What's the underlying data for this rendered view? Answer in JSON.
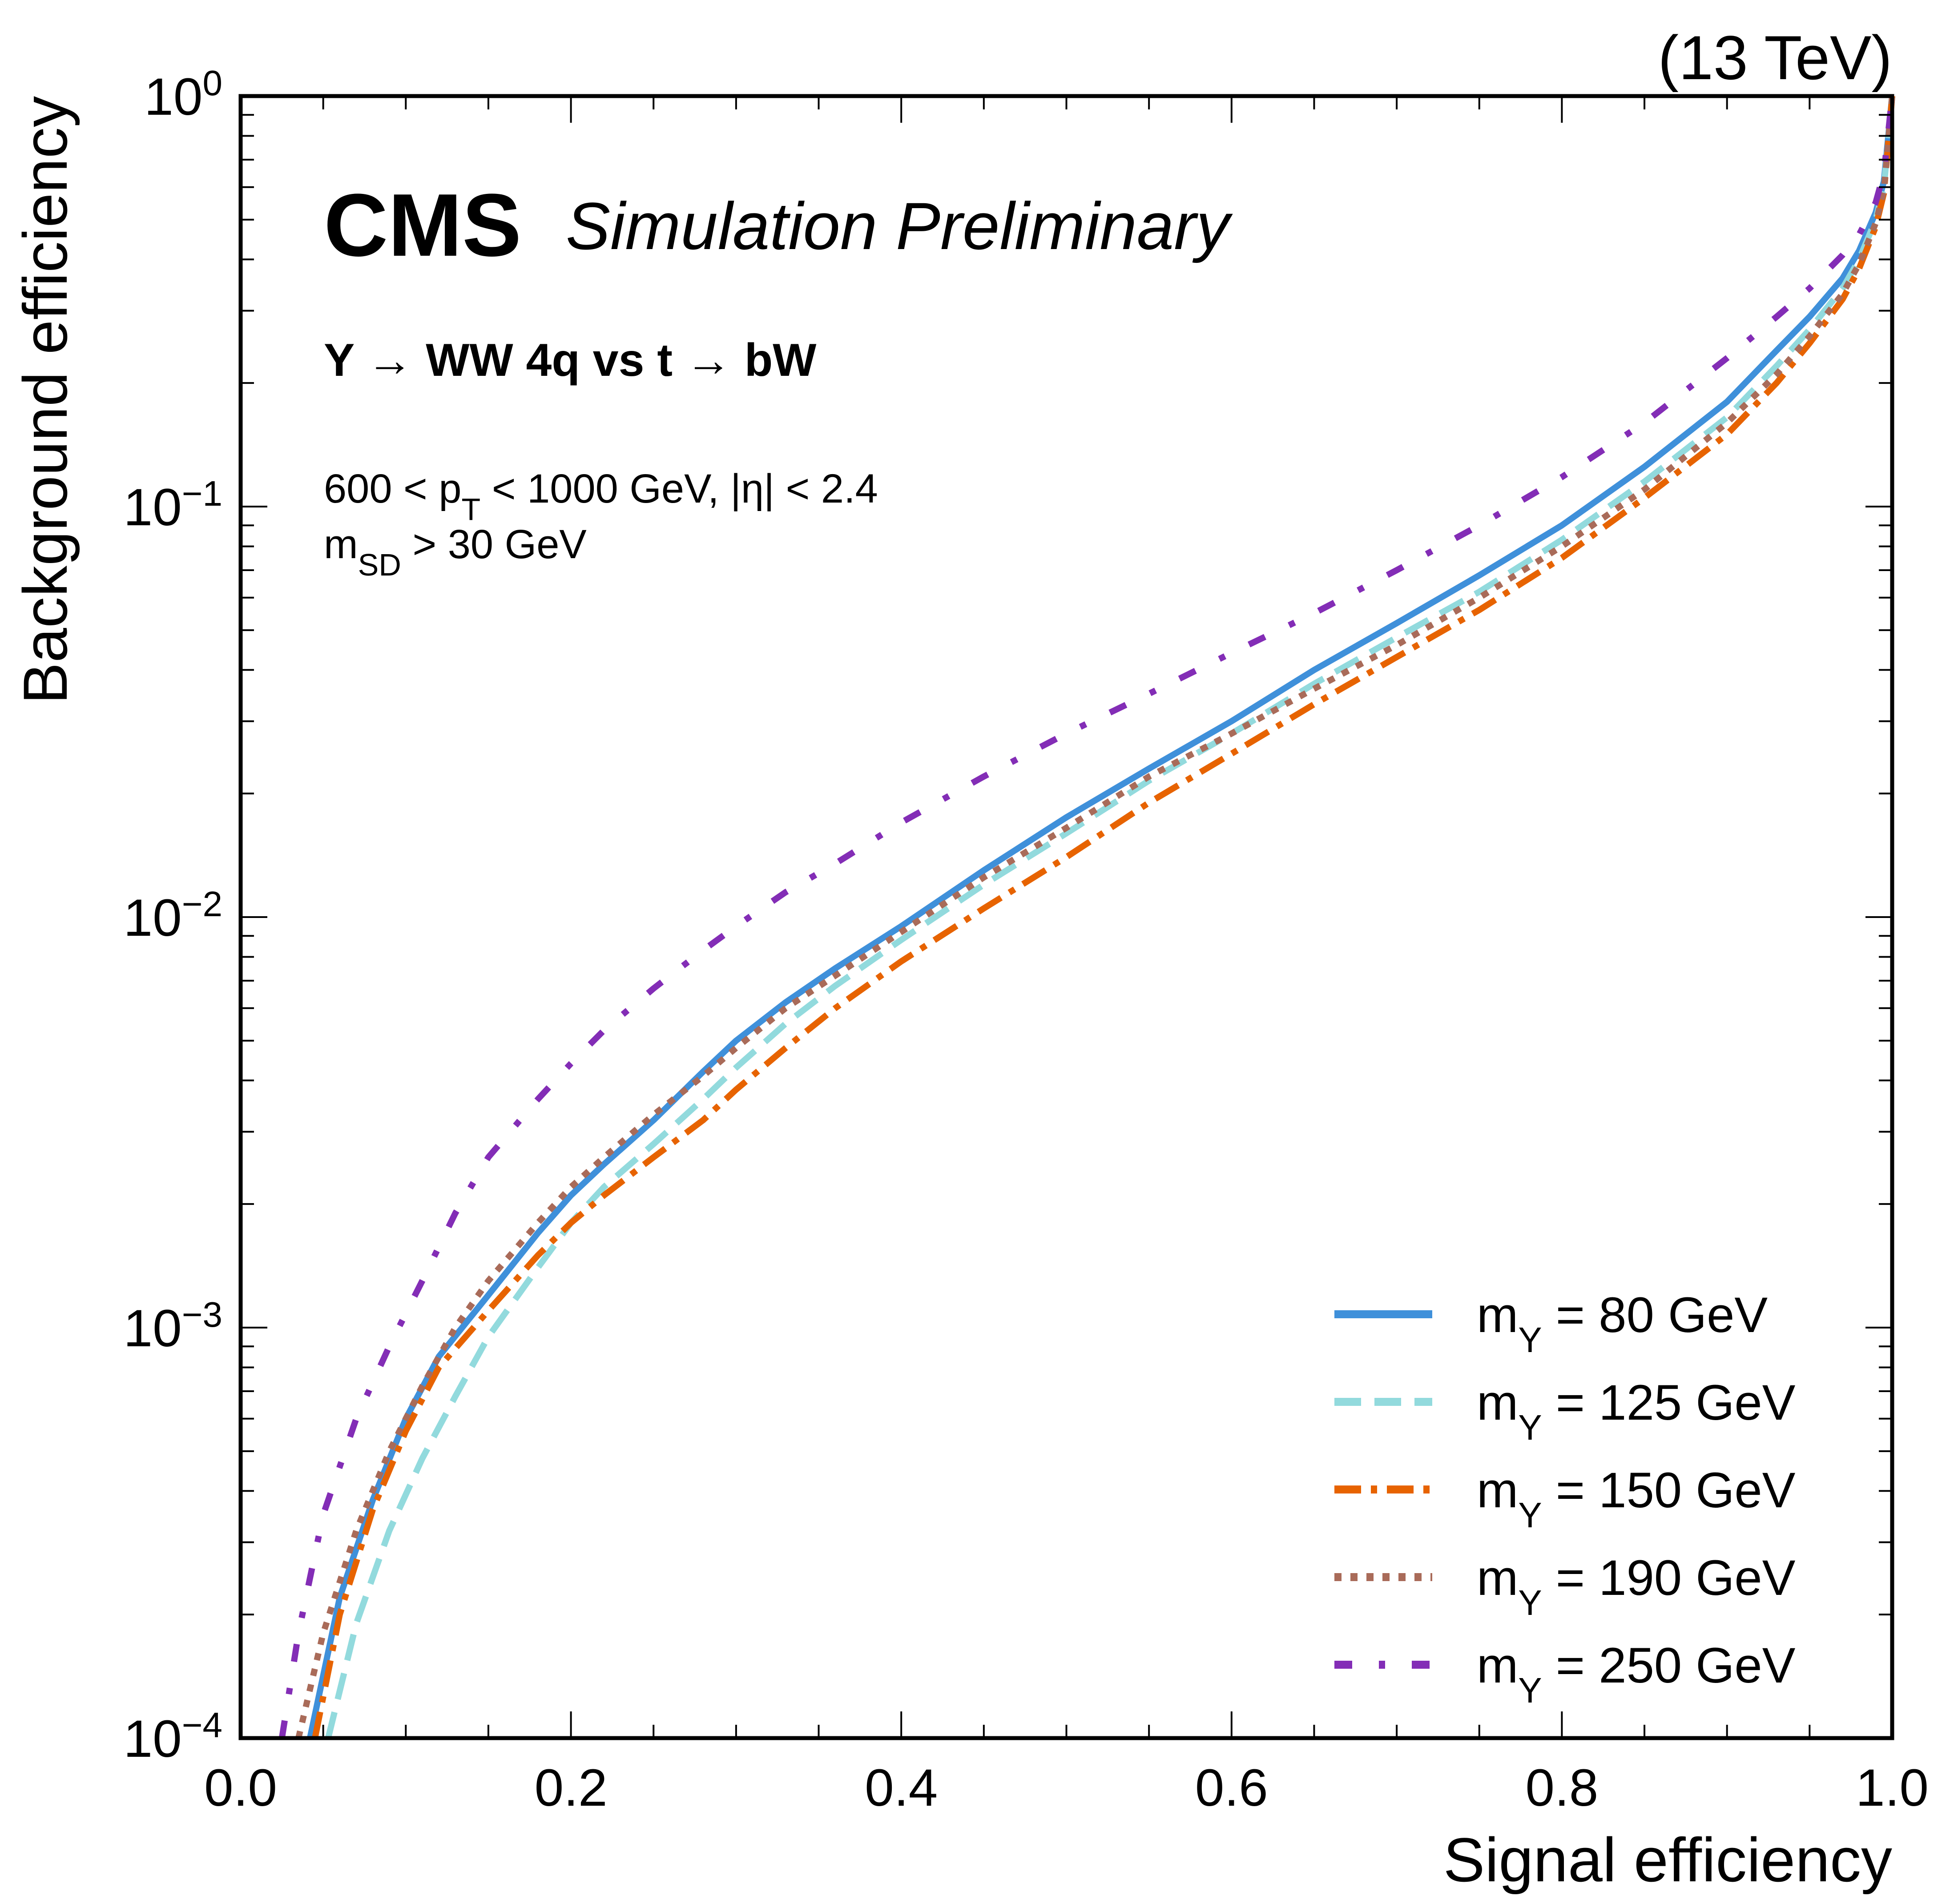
{
  "chart_data": {
    "type": "line",
    "title": "",
    "experiment_label": "CMS",
    "experiment_extra": "Simulation Preliminary",
    "energy_label": "(13 TeV)",
    "annotations": [
      "Y → WW 4q vs t → bW",
      "600 < pT < 1000 GeV, |η| < 2.4",
      "mSD > 30 GeV"
    ],
    "xlabel": "Signal efficiency",
    "ylabel": "Background efficiency",
    "xlim": [
      0.0,
      1.0
    ],
    "ylim": [
      0.0001,
      1.0
    ],
    "yscale": "log",
    "x_ticks": [
      "0.0",
      "0.2",
      "0.4",
      "0.6",
      "0.8",
      "1.0"
    ],
    "x_tick_values": [
      0.0,
      0.2,
      0.4,
      0.6,
      0.8,
      1.0
    ],
    "y_ticks": [
      {
        "value": 1.0,
        "base": "10",
        "exp": "0"
      },
      {
        "value": 0.1,
        "base": "10",
        "exp": "−1"
      },
      {
        "value": 0.01,
        "base": "10",
        "exp": "−2"
      },
      {
        "value": 0.001,
        "base": "10",
        "exp": "−3"
      },
      {
        "value": 0.0001,
        "base": "10",
        "exp": "−4"
      }
    ],
    "grid": false,
    "legend_position": "lower-right",
    "series": [
      {
        "name": "mY = 80 GeV",
        "mass": "80",
        "color": "#3f90da",
        "style": "solid",
        "x": [
          0.042,
          0.06,
          0.08,
          0.1,
          0.12,
          0.15,
          0.18,
          0.2,
          0.22,
          0.25,
          0.28,
          0.3,
          0.33,
          0.36,
          0.4,
          0.45,
          0.5,
          0.55,
          0.6,
          0.65,
          0.7,
          0.75,
          0.8,
          0.85,
          0.9,
          0.93,
          0.95,
          0.97,
          0.98,
          0.99,
          0.995,
          1.0
        ],
        "y": [
          0.0001,
          0.00022,
          0.00038,
          0.0006,
          0.00085,
          0.0012,
          0.0017,
          0.0021,
          0.0025,
          0.0032,
          0.0042,
          0.005,
          0.0062,
          0.0075,
          0.0095,
          0.013,
          0.0175,
          0.023,
          0.03,
          0.04,
          0.052,
          0.068,
          0.09,
          0.125,
          0.18,
          0.24,
          0.29,
          0.36,
          0.42,
          0.52,
          0.62,
          1.0
        ]
      },
      {
        "name": "mY = 125 GeV",
        "mass": "125",
        "color": "#92dadd",
        "style": "dashed",
        "x": [
          0.053,
          0.07,
          0.09,
          0.11,
          0.13,
          0.15,
          0.18,
          0.2,
          0.22,
          0.25,
          0.28,
          0.3,
          0.33,
          0.36,
          0.4,
          0.45,
          0.5,
          0.55,
          0.6,
          0.65,
          0.7,
          0.75,
          0.8,
          0.85,
          0.9,
          0.93,
          0.95,
          0.97,
          0.98,
          0.99,
          0.995,
          1.0
        ],
        "y": [
          0.0001,
          0.00019,
          0.00032,
          0.00048,
          0.00068,
          0.00095,
          0.0014,
          0.0018,
          0.0022,
          0.0028,
          0.0036,
          0.0043,
          0.0055,
          0.0068,
          0.0088,
          0.012,
          0.016,
          0.0215,
          0.028,
          0.037,
          0.048,
          0.062,
          0.083,
          0.115,
          0.165,
          0.22,
          0.27,
          0.34,
          0.4,
          0.5,
          0.6,
          1.0
        ]
      },
      {
        "name": "mY = 150 GeV",
        "mass": "150",
        "color": "#e76300",
        "style": "dashdot",
        "x": [
          0.045,
          0.06,
          0.08,
          0.1,
          0.12,
          0.15,
          0.18,
          0.2,
          0.22,
          0.25,
          0.28,
          0.3,
          0.33,
          0.36,
          0.4,
          0.45,
          0.5,
          0.55,
          0.6,
          0.65,
          0.7,
          0.75,
          0.8,
          0.85,
          0.9,
          0.93,
          0.95,
          0.97,
          0.98,
          0.99,
          0.995,
          1.0
        ],
        "y": [
          0.0001,
          0.0002,
          0.00036,
          0.00056,
          0.0008,
          0.0011,
          0.0015,
          0.0018,
          0.0021,
          0.0026,
          0.0032,
          0.0038,
          0.0048,
          0.006,
          0.0078,
          0.0105,
          0.014,
          0.019,
          0.025,
          0.033,
          0.043,
          0.056,
          0.075,
          0.105,
          0.15,
          0.2,
          0.25,
          0.32,
          0.38,
          0.48,
          0.58,
          1.0
        ]
      },
      {
        "name": "mY = 190 GeV",
        "mass": "190",
        "color": "#a96b59",
        "style": "dotted",
        "x": [
          0.035,
          0.05,
          0.07,
          0.09,
          0.11,
          0.13,
          0.15,
          0.18,
          0.2,
          0.22,
          0.25,
          0.28,
          0.3,
          0.33,
          0.36,
          0.4,
          0.45,
          0.5,
          0.55,
          0.6,
          0.65,
          0.7,
          0.75,
          0.8,
          0.85,
          0.9,
          0.93,
          0.95,
          0.97,
          0.98,
          0.99,
          0.995,
          1.0
        ],
        "y": [
          0.0001,
          0.00018,
          0.00032,
          0.0005,
          0.00072,
          0.001,
          0.0013,
          0.0018,
          0.0022,
          0.0026,
          0.0033,
          0.0041,
          0.0048,
          0.006,
          0.0072,
          0.0092,
          0.0125,
          0.0165,
          0.022,
          0.028,
          0.036,
          0.046,
          0.06,
          0.08,
          0.11,
          0.16,
          0.21,
          0.26,
          0.33,
          0.39,
          0.49,
          0.59,
          1.0
        ]
      },
      {
        "name": "mY = 250 GeV",
        "mass": "250",
        "color": "#832db6",
        "style": "dashdot-sparse",
        "x": [
          0.025,
          0.035,
          0.05,
          0.07,
          0.09,
          0.11,
          0.13,
          0.15,
          0.18,
          0.2,
          0.22,
          0.25,
          0.28,
          0.3,
          0.33,
          0.36,
          0.4,
          0.45,
          0.5,
          0.55,
          0.6,
          0.65,
          0.7,
          0.75,
          0.8,
          0.85,
          0.9,
          0.93,
          0.95,
          0.97,
          0.98,
          0.99,
          0.995,
          1.0
        ],
        "y": [
          0.0001,
          0.00018,
          0.00035,
          0.0006,
          0.0009,
          0.0013,
          0.0019,
          0.0026,
          0.0036,
          0.0044,
          0.0053,
          0.0067,
          0.0083,
          0.0095,
          0.0115,
          0.0135,
          0.017,
          0.022,
          0.028,
          0.035,
          0.044,
          0.055,
          0.07,
          0.09,
          0.118,
          0.16,
          0.23,
          0.29,
          0.34,
          0.41,
          0.46,
          0.55,
          0.65,
          1.0
        ]
      }
    ]
  }
}
